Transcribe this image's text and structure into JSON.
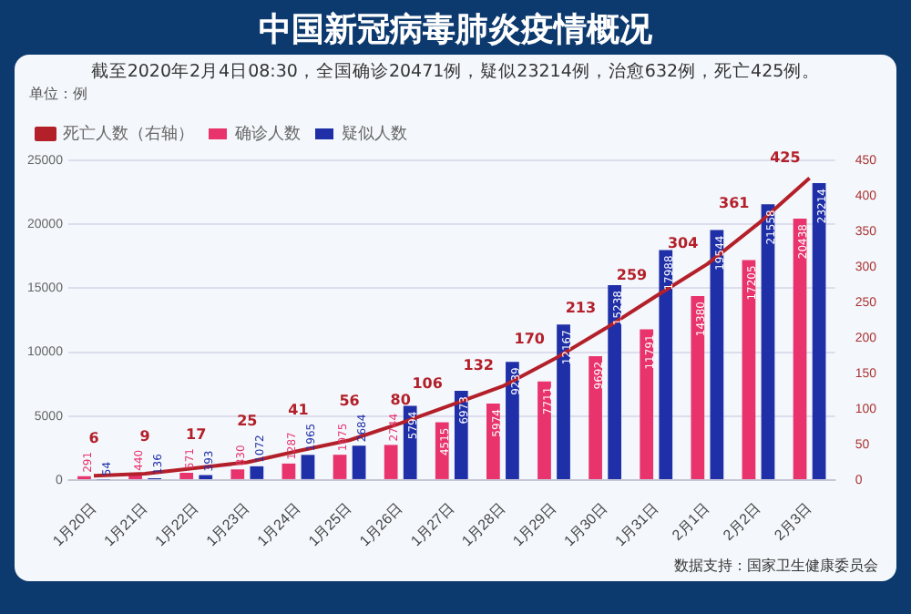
{
  "chart_data": {
    "type": "bar",
    "title": "中国新冠病毒肺炎疫情概况",
    "subtitle": "截至2020年2月4日08:30，全国确诊20471例，疑似23214例，治愈632例，死亡425例。",
    "categories": [
      "1月20日",
      "1月21日",
      "1月22日",
      "1月23日",
      "1月24日",
      "1月25日",
      "1月26日",
      "1月27日",
      "1月28日",
      "1月29日",
      "1月30日",
      "1月31日",
      "2月1日",
      "2月2日",
      "2月3日"
    ],
    "series": [
      {
        "name": "确诊人数",
        "color": "#e8336d",
        "values": [
          291,
          440,
          571,
          830,
          1287,
          1975,
          2744,
          4515,
          5974,
          7711,
          9692,
          11791,
          14380,
          17205,
          20438
        ]
      },
      {
        "name": "疑似人数",
        "color": "#1f2fa8",
        "values": [
          54,
          136,
          393,
          1072,
          1965,
          2684,
          5794,
          6973,
          9239,
          12167,
          15238,
          17988,
          19544,
          21558,
          23214
        ]
      },
      {
        "name": "死亡人数（右轴）",
        "type": "line",
        "axis": "y2",
        "color": "#b3202a",
        "values": [
          6,
          9,
          17,
          25,
          41,
          56,
          80,
          106,
          132,
          170,
          213,
          259,
          304,
          361,
          425
        ]
      }
    ],
    "ylim": [
      0,
      25000
    ],
    "yticks": [
      0,
      5000,
      10000,
      15000,
      20000,
      25000
    ],
    "y2lim": [
      0,
      450
    ],
    "y2ticks": [
      0,
      50,
      100,
      150,
      200,
      250,
      300,
      350,
      400,
      450
    ],
    "grid": "y",
    "legend": "top left",
    "data_labels": true,
    "marker": "none",
    "annotations": [
      "单位：例",
      "数据支持：国家卫生健康委员会"
    ]
  }
}
